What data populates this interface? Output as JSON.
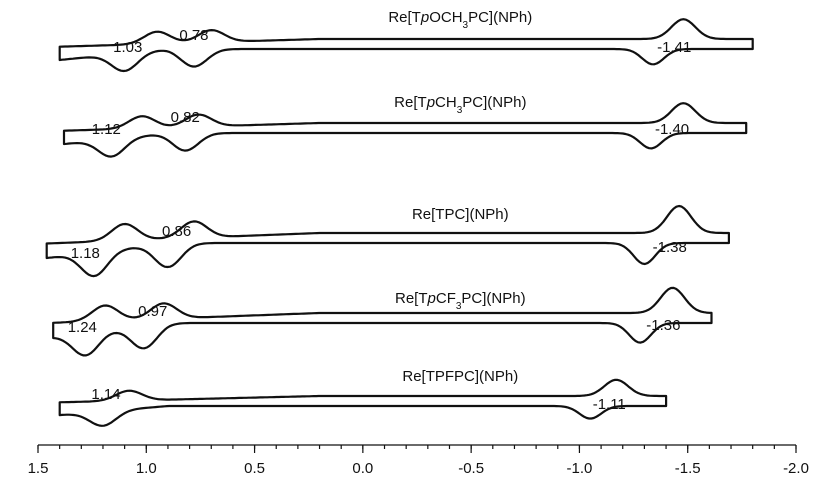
{
  "chart_data": {
    "type": "line",
    "title": "",
    "xlabel": "",
    "ylabel": "",
    "x_reversed": true,
    "xlim": [
      1.5,
      -2.0
    ],
    "x_ticks": [
      1.5,
      1.0,
      0.5,
      0.0,
      -0.5,
      -1.0,
      -1.5,
      -2.0
    ],
    "x_tick_labels": [
      "1.5",
      "1.0",
      "0.5",
      "0.0",
      "-0.5",
      "-1.0",
      "-1.5",
      "-2.0"
    ],
    "grid": false,
    "series": [
      {
        "name": "Re[TpOCH3PC](NPh)",
        "name_parts": [
          "Re[T",
          "p",
          "OCH",
          "3",
          "PC](NPh)"
        ],
        "x_min": 1.4,
        "x_max": -1.8,
        "oxidation_peaks": [
          1.1,
          0.78
        ],
        "reduction_peaks": [
          0.95,
          0.7
        ],
        "cathodic_peak": -1.34,
        "anodic_peak": -1.48,
        "annotations": [
          {
            "text": "1.03",
            "x": 1.03
          },
          {
            "text": "0.78",
            "x": 0.78
          },
          {
            "text": "-1.41",
            "x": -1.41
          }
        ]
      },
      {
        "name": "Re[TpCH3PC](NPh)",
        "name_parts": [
          "Re[T",
          "p",
          "CH",
          "3",
          "PC](NPh)"
        ],
        "x_min": 1.38,
        "x_max": -1.77,
        "oxidation_peaks": [
          1.16,
          0.82
        ],
        "reduction_peaks": [
          1.02,
          0.76
        ],
        "cathodic_peak": -1.33,
        "anodic_peak": -1.48,
        "annotations": [
          {
            "text": "1.12",
            "x": 1.12
          },
          {
            "text": "0.82",
            "x": 0.82
          },
          {
            "text": "-1.40",
            "x": -1.4
          }
        ]
      },
      {
        "name": "Re[TPC](NPh)",
        "name_parts": [
          "Re[TPC](NPh)"
        ],
        "x_min": 1.46,
        "x_max": -1.69,
        "oxidation_peaks": [
          1.24,
          0.9
        ],
        "reduction_peaks": [
          1.1,
          0.78
        ],
        "cathodic_peak": -1.3,
        "anodic_peak": -1.46,
        "annotations": [
          {
            "text": "1.18",
            "x": 1.18
          },
          {
            "text": "0.86",
            "x": 0.86
          },
          {
            "text": "-1.38",
            "x": -1.38
          }
        ]
      },
      {
        "name": "Re[TpCF3PC](NPh)",
        "name_parts": [
          "Re[T",
          "p",
          "CF",
          "3",
          "PC](NPh)"
        ],
        "x_min": 1.43,
        "x_max": -1.61,
        "oxidation_peaks": [
          1.28,
          1.01
        ],
        "reduction_peaks": [
          1.19,
          0.92
        ],
        "cathodic_peak": -1.28,
        "anodic_peak": -1.43,
        "annotations": [
          {
            "text": "1.24",
            "x": 1.24
          },
          {
            "text": "0.97",
            "x": 0.97
          },
          {
            "text": "-1.36",
            "x": -1.36
          }
        ]
      },
      {
        "name": "Re[TPFPC](NPh)",
        "name_parts": [
          "Re[TPFPC](NPh)"
        ],
        "x_min": 1.4,
        "x_max": -1.4,
        "oxidation_peaks": [
          1.2
        ],
        "reduction_peaks": [
          1.08
        ],
        "cathodic_peak": -1.05,
        "anodic_peak": -1.17,
        "annotations": [
          {
            "text": "1.14",
            "x": 1.14
          },
          {
            "text": "-1.11",
            "x": -1.11
          }
        ]
      }
    ]
  }
}
